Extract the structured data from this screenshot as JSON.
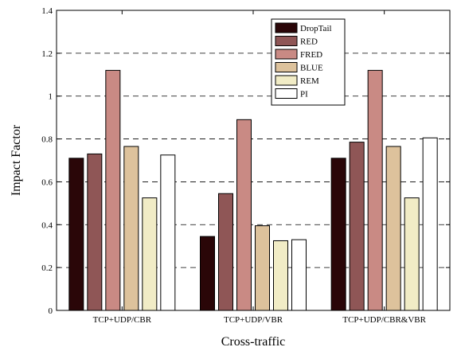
{
  "chart_data": {
    "type": "bar",
    "title": "",
    "xlabel": "Cross-traffic",
    "ylabel": "Impact Factor",
    "ylim": [
      0,
      1.4
    ],
    "yticks": [
      "0",
      "0.2",
      "0.4",
      "0.6",
      "0.8",
      "1",
      "1.2",
      "1.4"
    ],
    "grid": "horizontal-dashed",
    "legend_position": "top-center",
    "categories": [
      "TCP+UDP/CBR",
      "TCP+UDP/VBR",
      "TCP+UDP/CBR&VBR"
    ],
    "series": [
      {
        "name": "DropTail",
        "color": "#2a0608",
        "values": [
          0.71,
          0.345,
          0.71
        ]
      },
      {
        "name": "RED",
        "color": "#8f5656",
        "values": [
          0.73,
          0.545,
          0.785
        ]
      },
      {
        "name": "FRED",
        "color": "#c98a84",
        "values": [
          1.12,
          0.89,
          1.12
        ]
      },
      {
        "name": "BLUE",
        "color": "#ddc29c",
        "values": [
          0.765,
          0.395,
          0.765
        ]
      },
      {
        "name": "REM",
        "color": "#f1ecc6",
        "values": [
          0.525,
          0.325,
          0.525
        ]
      },
      {
        "name": "PI",
        "color": "#ffffff",
        "values": [
          0.725,
          0.33,
          0.805
        ]
      }
    ]
  }
}
